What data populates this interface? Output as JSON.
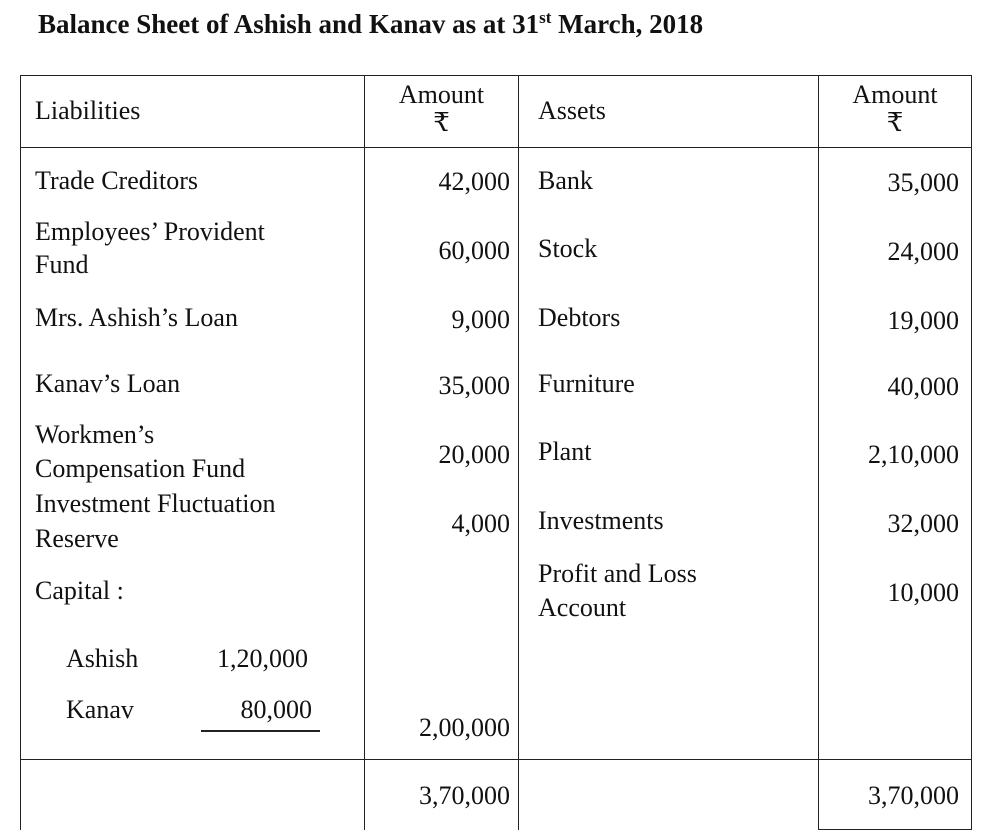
{
  "title": {
    "prefix": "Balance Sheet of Ashish and Kanav as at 31",
    "sup": "st",
    "suffix": " March, 2018"
  },
  "header": {
    "liabilities": "Liabilities",
    "amount": "Amount",
    "currency": "₹",
    "assets": "Assets"
  },
  "liabilities": [
    {
      "label": "Trade Creditors",
      "amount": "42,000"
    },
    {
      "label_line1": "Employees’ Provident",
      "label_line2": "Fund",
      "amount": "60,000"
    },
    {
      "label": "Mrs. Ashish’s Loan",
      "amount": "9,000"
    },
    {
      "label": "Kanav’s Loan",
      "amount": "35,000"
    },
    {
      "label_line1": "Workmen’s",
      "label_line2": "Compensation Fund",
      "amount": "20,000"
    },
    {
      "label_line1": "Investment Fluctuation",
      "label_line2": "Reserve",
      "amount": "4,000"
    }
  ],
  "capital": {
    "label": "Capital :",
    "partners": [
      {
        "name": "Ashish",
        "amount": "1,20,000"
      },
      {
        "name": "Kanav",
        "amount": "80,000"
      }
    ],
    "total": "2,00,000"
  },
  "assets": [
    {
      "label": "Bank",
      "amount": "35,000"
    },
    {
      "label": "Stock",
      "amount": "24,000"
    },
    {
      "label": "Debtors",
      "amount": "19,000"
    },
    {
      "label": "Furniture",
      "amount": "40,000"
    },
    {
      "label": "Plant",
      "amount": "2,10,000"
    },
    {
      "label": "Investments",
      "amount": "32,000"
    },
    {
      "label_line1": "Profit and Loss",
      "label_line2": "Account",
      "amount": "10,000"
    }
  ],
  "totals": {
    "liabilities": "3,70,000",
    "assets": "3,70,000"
  }
}
